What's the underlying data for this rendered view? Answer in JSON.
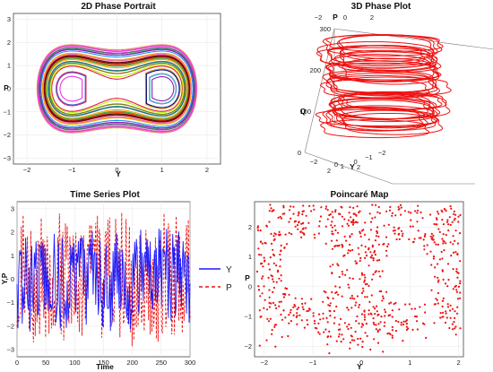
{
  "chart_data": [
    {
      "id": "phase2d",
      "type": "line",
      "title": "2D Phase Portrait",
      "xlabel": "Y",
      "ylabel": "P",
      "xlim": [
        -2.3,
        2.3
      ],
      "ylim": [
        -3.25,
        3.25
      ],
      "xticks": [
        -2,
        -1,
        0,
        1,
        2
      ],
      "yticks": [
        -3,
        -2,
        -1,
        0,
        1,
        2,
        3
      ],
      "series_count": 40,
      "colors": [
        "#e6194b",
        "#3cb44b",
        "#4363d8",
        "#f58231",
        "#911eb4",
        "#46c0c0",
        "#f032e6",
        "#bcf60c",
        "#ff69b4",
        "#008080",
        "#9a6324",
        "#800000",
        "#1e90ff",
        "#808000",
        "#000075",
        "#ffa500",
        "#00c000",
        "#ff00ff",
        "#00bfff",
        "#ff4500",
        "#7b68ee",
        "#2e8b57",
        "#dc143c",
        "#daa520"
      ]
    },
    {
      "id": "phase3d",
      "type": "line",
      "title": "3D Phase Plot",
      "xlabel": "Y",
      "ylabel": "P",
      "zlabel": "Q",
      "y_ticks": [
        -2,
        0,
        2
      ],
      "p_ticks": [
        -2,
        0,
        2
      ],
      "x_ticks": [
        2,
        1,
        0,
        -1,
        -2
      ],
      "z_ticks": [
        0,
        100,
        200,
        300
      ],
      "zlim": [
        0,
        300
      ],
      "color": "#ee1111"
    },
    {
      "id": "timeseries",
      "type": "line",
      "title": "Time Series Plot",
      "xlabel": "Time",
      "ylabel": "Y,P",
      "xlim": [
        0,
        300
      ],
      "ylim": [
        -3.3,
        3.3
      ],
      "xticks": [
        0,
        50,
        100,
        150,
        200,
        250,
        300
      ],
      "yticks": [
        -3,
        -2,
        -1,
        0,
        1,
        2,
        3
      ],
      "series": [
        {
          "name": "Y",
          "color": "#1a1aff",
          "style": "solid"
        },
        {
          "name": "P",
          "color": "#ee1111",
          "style": "dashed"
        }
      ]
    },
    {
      "id": "poincare",
      "type": "scatter",
      "title": "Poincaré Map",
      "xlabel": "Y",
      "ylabel": "P",
      "xlim": [
        -2.2,
        2.1
      ],
      "ylim": [
        -2.35,
        2.85
      ],
      "xticks": [
        -2,
        -1,
        0,
        1,
        2
      ],
      "yticks": [
        -2,
        -1,
        0,
        1,
        2
      ],
      "point_count": 760,
      "color": "#ee1111"
    }
  ]
}
